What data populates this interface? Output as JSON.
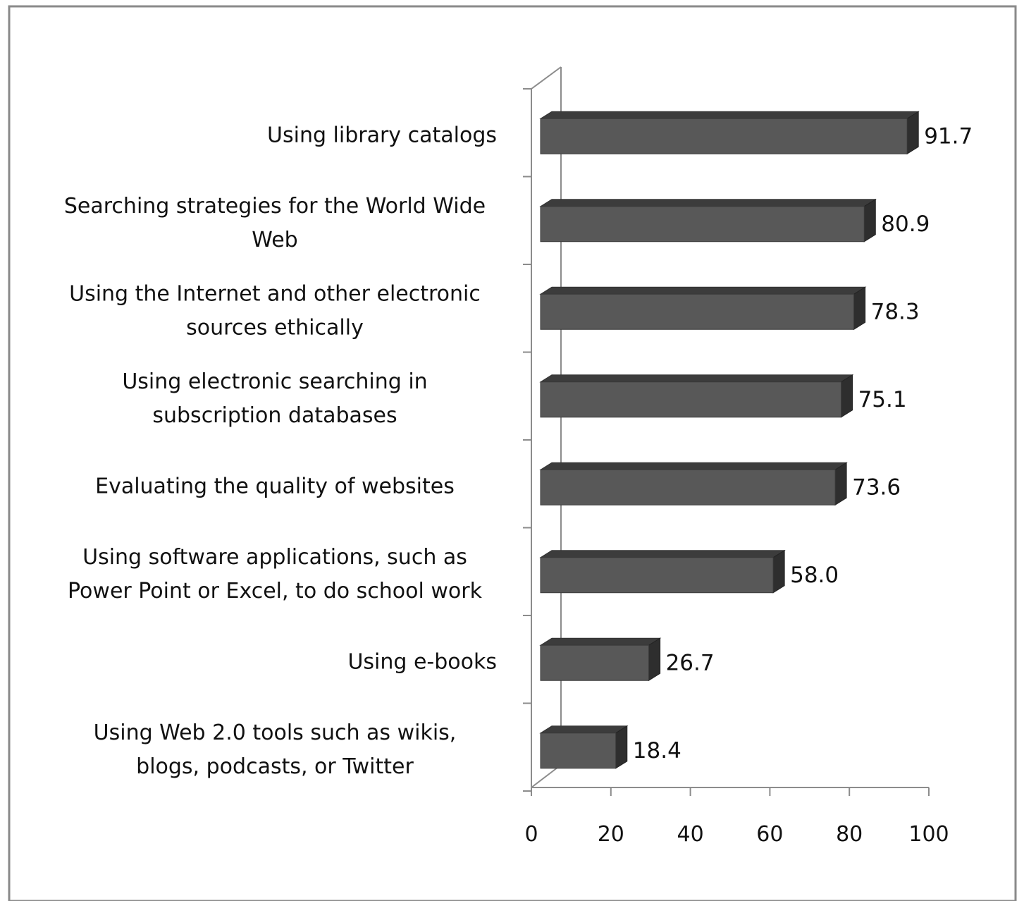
{
  "chart_data": {
    "type": "bar",
    "orientation": "horizontal",
    "three_d": true,
    "categories": [
      "Using library catalogs",
      "Searching strategies for the World Wide Web",
      "Using the Internet and other electronic sources ethically",
      "Using electronic searching in subscription databases",
      "Evaluating the quality of websites",
      "Using software applications, such as Power Point or Excel, to do school work",
      "Using e-books",
      "Using Web 2.0 tools such as wikis, blogs, podcasts, or Twitter"
    ],
    "category_lines": [
      [
        "Using library catalogs"
      ],
      [
        "Searching strategies for the World Wide",
        "Web"
      ],
      [
        "Using the Internet and other electronic",
        "sources ethically"
      ],
      [
        "Using electronic searching in",
        "subscription databases"
      ],
      [
        "Evaluating the quality of websites"
      ],
      [
        "Using software applications, such as",
        "Power Point or Excel, to do school work"
      ],
      [
        "Using e-books"
      ],
      [
        "Using Web 2.0 tools such as wikis,",
        "blogs, podcasts, or Twitter"
      ]
    ],
    "values": [
      91.7,
      80.9,
      78.3,
      75.1,
      73.6,
      58.0,
      26.7,
      18.4
    ],
    "value_labels": [
      "91.7",
      "80.9",
      "78.3",
      "75.1",
      "73.6",
      "58.0",
      "26.7",
      "18.4"
    ],
    "xlim": [
      0,
      100
    ],
    "xticks": [
      "0",
      "20",
      "40",
      "60",
      "80",
      "100"
    ],
    "title": "",
    "xlabel": "",
    "ylabel": "",
    "grid": false,
    "legend": "none",
    "colors": {
      "bar_front": "#585858",
      "bar_top": "#3c3c3c",
      "bar_side": "#2e2e2e",
      "axis": "#8c8c8c",
      "frame": "#8a8a8a"
    }
  }
}
